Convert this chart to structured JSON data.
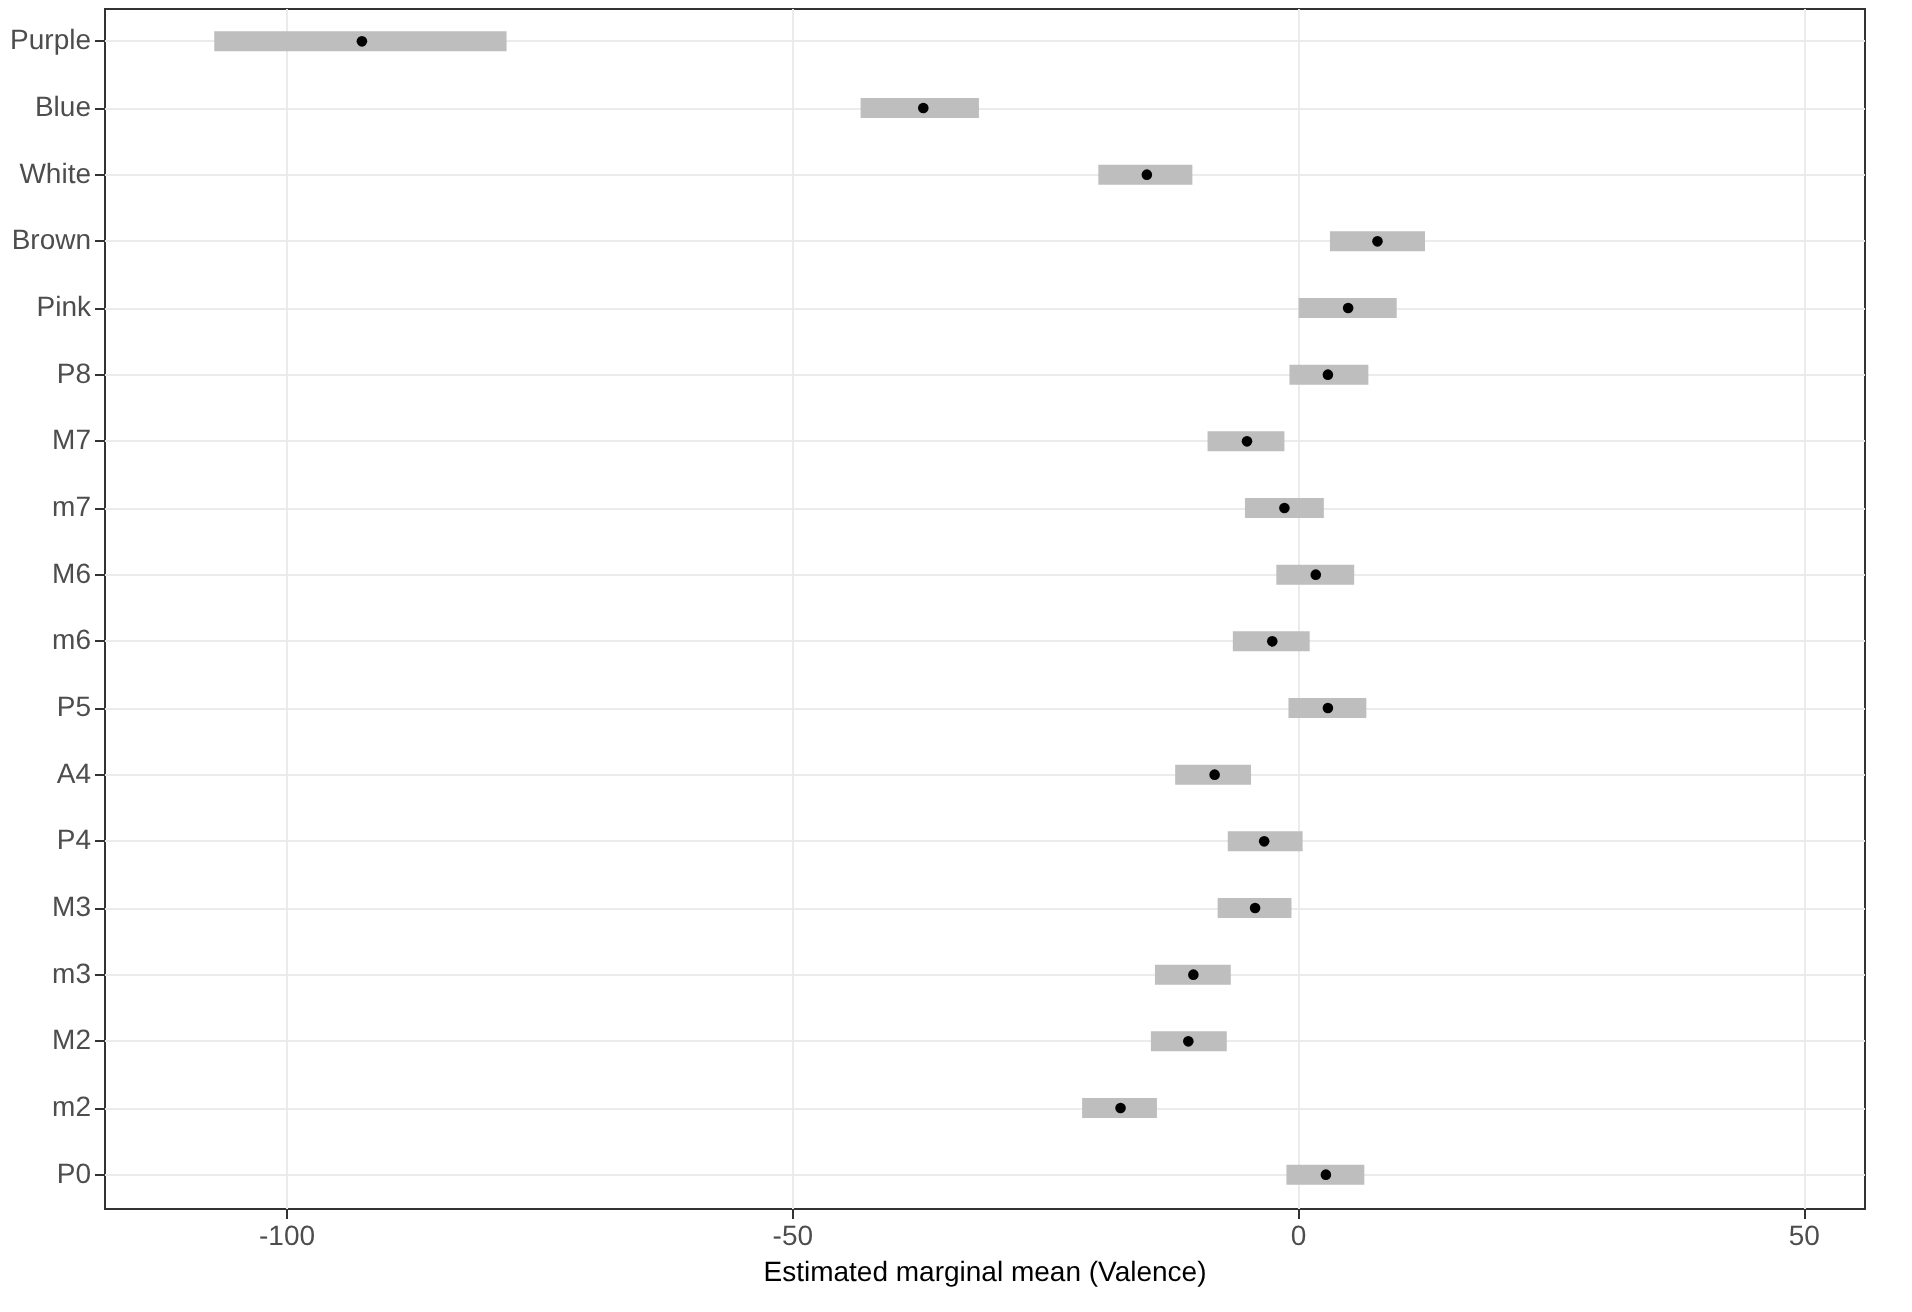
{
  "chart_data": {
    "type": "scatter",
    "orientation": "horizontal",
    "xlabel": "Estimated marginal mean (Valence)",
    "categories": [
      "Purple",
      "Blue",
      "White",
      "Brown",
      "Pink",
      "P8",
      "M7",
      "m7",
      "M6",
      "m6",
      "P5",
      "A4",
      "P4",
      "M3",
      "m3",
      "M2",
      "m2",
      "P0"
    ],
    "values": [
      -92.5,
      -37.0,
      -14.9,
      7.9,
      5.0,
      3.0,
      -5.0,
      -1.3,
      1.8,
      -2.5,
      3.0,
      -8.2,
      -3.3,
      -4.2,
      -10.3,
      -10.8,
      -17.5,
      2.8
    ],
    "errors": [
      [
        -107.1,
        -78.2
      ],
      [
        -43.2,
        -31.5
      ],
      [
        -19.7,
        -10.4
      ],
      [
        3.2,
        12.6
      ],
      [
        0.1,
        9.8
      ],
      [
        -0.8,
        7.0
      ],
      [
        -8.9,
        -1.3
      ],
      [
        -5.2,
        2.6
      ],
      [
        -2.1,
        5.6
      ],
      [
        -6.4,
        1.2
      ],
      [
        -0.9,
        6.8
      ],
      [
        -12.1,
        -4.6
      ],
      [
        -6.9,
        0.5
      ],
      [
        -7.9,
        -0.6
      ],
      [
        -14.1,
        -6.6
      ],
      [
        -14.5,
        -7.0
      ],
      [
        -21.3,
        -13.9
      ],
      [
        -1.1,
        6.6
      ]
    ],
    "color": "#000000",
    "marker": "circle",
    "grid": true,
    "xlim": [
      -118,
      56
    ],
    "xticks": [
      -100,
      -50,
      0,
      50
    ]
  }
}
